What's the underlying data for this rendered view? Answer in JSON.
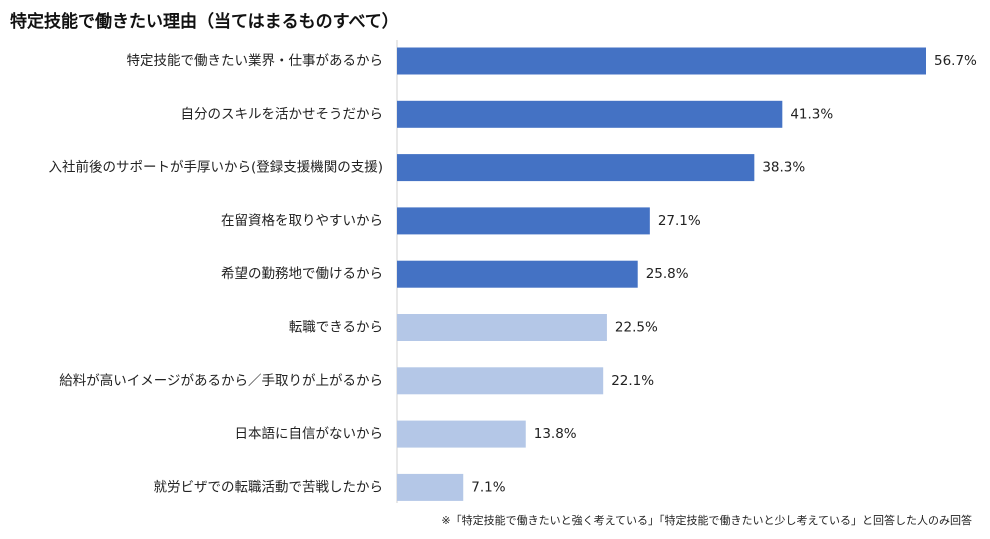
{
  "chart_data": {
    "type": "bar",
    "orientation": "horizontal",
    "title": "特定技能で働きたい理由（当てはまるものすべて）",
    "categories": [
      "特定技能で働きたい業界・仕事があるから",
      "自分のスキルを活かせそうだから",
      "入社前後のサポートが手厚いから(登録支援機関の支援)",
      "在留資格を取りやすいから",
      "希望の勤務地で働けるから",
      "転職できるから",
      "給料が高いイメージがあるから／手取りが上がるから",
      "日本語に自信がないから",
      "就労ビザでの転職活動で苦戦したから"
    ],
    "values": [
      56.7,
      41.3,
      38.3,
      27.1,
      25.8,
      22.5,
      22.1,
      13.8,
      7.1
    ],
    "value_labels": [
      "56.7%",
      "41.3%",
      "38.3%",
      "27.1%",
      "25.8%",
      "22.5%",
      "22.1%",
      "13.8%",
      "7.1%"
    ],
    "highlighted": [
      true,
      true,
      true,
      true,
      true,
      false,
      false,
      false,
      false
    ],
    "colors": {
      "highlight": "#4472c4",
      "normal": "#b4c7e7",
      "axis": "#d0d0d0"
    },
    "xlim": [
      0,
      60
    ],
    "grid": false,
    "xlabel": "",
    "ylabel": ""
  },
  "footnote": "※「特定技能で働きたいと強く考えている」「特定技能で働きたいと少し考えている」と回答した人のみ回答"
}
